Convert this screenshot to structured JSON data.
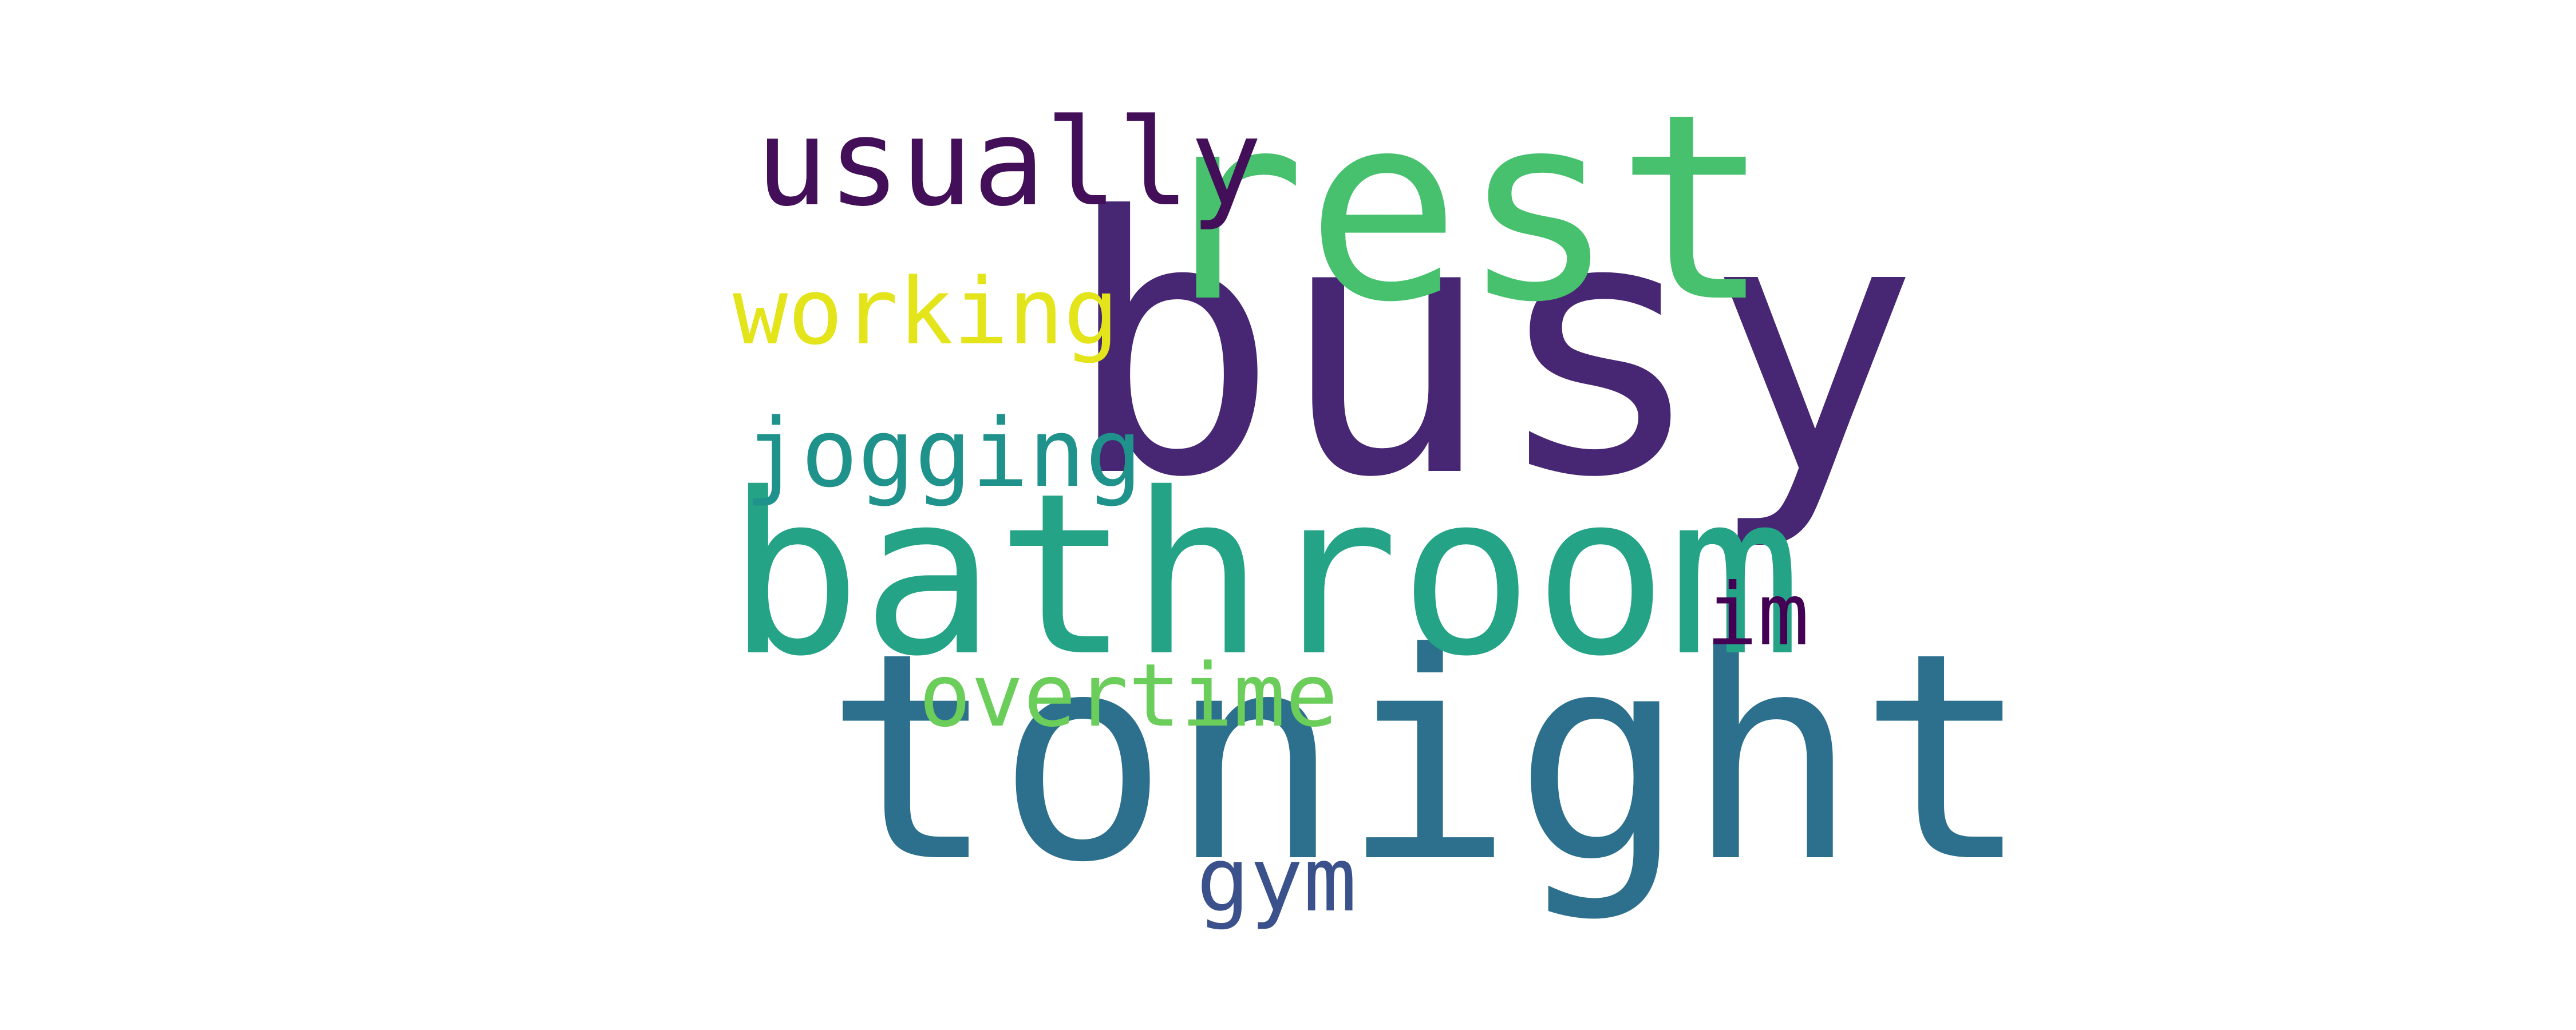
{
  "words": [
    {
      "text": "busy",
      "color": "#472673"
    },
    {
      "text": "tonight",
      "color": "#2d708e"
    },
    {
      "text": "bathroom",
      "color": "#24a386"
    },
    {
      "text": "rest",
      "color": "#47c16e"
    },
    {
      "text": "usually",
      "color": "#430f59"
    },
    {
      "text": "working",
      "color": "#e3e41a"
    },
    {
      "text": "jogging",
      "color": "#20928c"
    },
    {
      "text": "overtime",
      "color": "#6bcd5a"
    },
    {
      "text": "im",
      "color": "#440154"
    },
    {
      "text": "gym",
      "color": "#3b518b"
    }
  ]
}
